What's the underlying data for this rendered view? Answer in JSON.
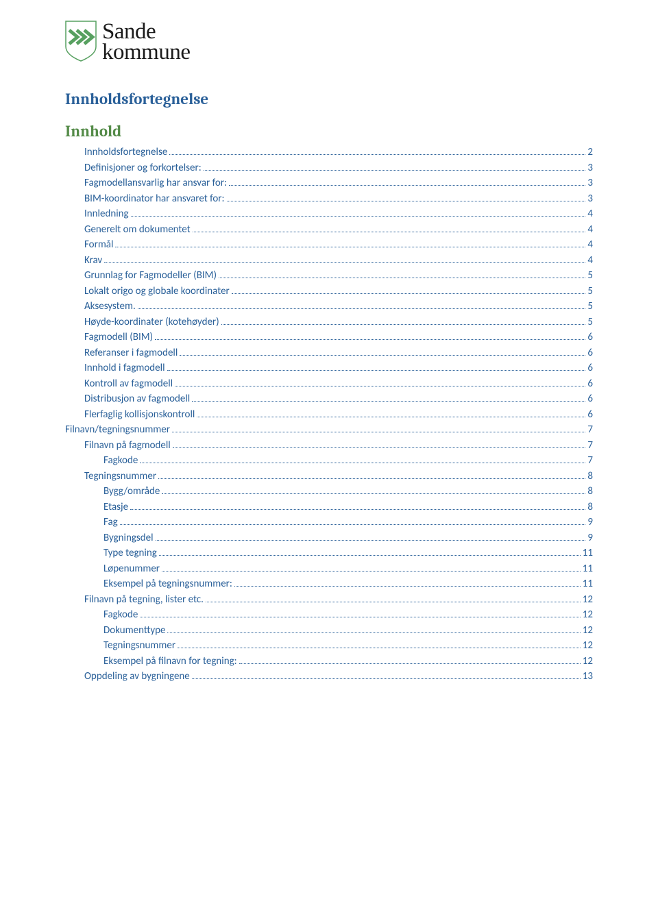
{
  "logo": {
    "line1": "Sande",
    "line2": "kommune"
  },
  "triangle": {
    "color_outer": "#57a060",
    "color_inner": "#c0d8bf",
    "outer_w": 70,
    "outer_h": 140,
    "inner_w": 42,
    "inner_h": 84
  },
  "shield": {
    "border_color": "#57a060",
    "chevrons_color": "#57a060",
    "bg": "#ffffff"
  },
  "heading": "Innholdsfortegnelse",
  "subheading": "Innhold",
  "toc_link_color": "#2a6099",
  "h1_color": "#2a6099",
  "h2_color": "#548b48",
  "body_fontsize": 15,
  "entries": [
    {
      "label": "Innholdsfortegnelse",
      "page": "2",
      "indent": 1
    },
    {
      "label": "Definisjoner og forkortelser:",
      "page": "3",
      "indent": 1
    },
    {
      "label": "Fagmodellansvarlig har ansvar for:",
      "page": "3",
      "indent": 1
    },
    {
      "label": "BIM-koordinator har ansvaret for:",
      "page": "3",
      "indent": 1
    },
    {
      "label": "Innledning",
      "page": "4",
      "indent": 1
    },
    {
      "label": "Generelt om dokumentet",
      "page": "4",
      "indent": 1
    },
    {
      "label": "Formål",
      "page": "4",
      "indent": 1
    },
    {
      "label": "Krav",
      "page": "4",
      "indent": 1
    },
    {
      "label": "Grunnlag for Fagmodeller (BIM)",
      "page": "5",
      "indent": 1
    },
    {
      "label": "Lokalt origo og globale koordinater",
      "page": "5",
      "indent": 1
    },
    {
      "label": "Aksesystem.",
      "page": "5",
      "indent": 1
    },
    {
      "label": "Høyde-koordinater (kotehøyder)",
      "page": "5",
      "indent": 1
    },
    {
      "label": "Fagmodell (BIM)",
      "page": "6",
      "indent": 1
    },
    {
      "label": "Referanser i fagmodell",
      "page": "6",
      "indent": 1
    },
    {
      "label": "Innhold i fagmodell",
      "page": "6",
      "indent": 1
    },
    {
      "label": "Kontroll av fagmodell",
      "page": "6",
      "indent": 1
    },
    {
      "label": "Distribusjon av fagmodell",
      "page": "6",
      "indent": 1
    },
    {
      "label": "Flerfaglig kollisjonskontroll",
      "page": "6",
      "indent": 1
    },
    {
      "label": "Filnavn/tegningsnummer",
      "page": "7",
      "indent": 0
    },
    {
      "label": "Filnavn på fagmodell",
      "page": "7",
      "indent": 1
    },
    {
      "label": "Fagkode",
      "page": "7",
      "indent": 2
    },
    {
      "label": "Tegningsnummer",
      "page": "8",
      "indent": 1
    },
    {
      "label": "Bygg/område",
      "page": "8",
      "indent": 2
    },
    {
      "label": "Etasje",
      "page": "8",
      "indent": 2
    },
    {
      "label": "Fag",
      "page": "9",
      "indent": 2
    },
    {
      "label": "Bygningsdel",
      "page": "9",
      "indent": 2
    },
    {
      "label": "Type tegning",
      "page": "11",
      "indent": 2
    },
    {
      "label": "Løpenummer",
      "page": "11",
      "indent": 2
    },
    {
      "label": "Eksempel på tegningsnummer:",
      "page": "11",
      "indent": 2
    },
    {
      "label": "Filnavn på tegning, lister etc.",
      "page": "12",
      "indent": 1
    },
    {
      "label": "Fagkode",
      "page": "12",
      "indent": 2
    },
    {
      "label": "Dokumenttype",
      "page": "12",
      "indent": 2
    },
    {
      "label": "Tegningsnummer",
      "page": "12",
      "indent": 2
    },
    {
      "label": "Eksempel på filnavn for tegning:",
      "page": "12",
      "indent": 2
    },
    {
      "label": "Oppdeling av bygningene",
      "page": "13",
      "indent": 1
    }
  ]
}
